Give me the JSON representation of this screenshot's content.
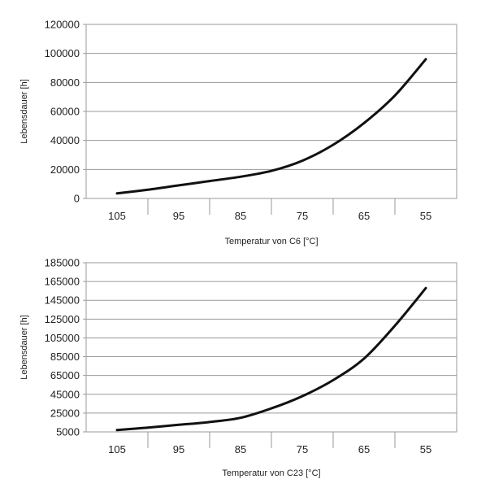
{
  "chart_data": [
    {
      "type": "line",
      "title": "",
      "xlabel": "Temperatur von C6 [°C]",
      "ylabel": "Lebensdauer [h]",
      "x_categories": [
        "105",
        "95",
        "85",
        "75",
        "65",
        "55"
      ],
      "y_ticks": [
        "0",
        "20000",
        "40000",
        "60000",
        "80000",
        "100000",
        "120000"
      ],
      "ylim": [
        0,
        120000
      ],
      "grid": true,
      "series": [
        {
          "x": [
            105,
            100,
            95,
            90,
            85,
            80,
            75,
            70,
            65,
            60,
            55
          ],
          "y": [
            3500,
            6000,
            9000,
            12000,
            15000,
            19000,
            26000,
            37000,
            52000,
            71000,
            96000
          ]
        }
      ],
      "line_color": "#111111"
    },
    {
      "type": "line",
      "title": "",
      "xlabel": "Temperatur von C23 [°C]",
      "ylabel": "Lebensdauer [h]",
      "x_categories": [
        "105",
        "95",
        "85",
        "75",
        "65",
        "55"
      ],
      "y_ticks": [
        "5000",
        "25000",
        "45000",
        "65000",
        "85000",
        "105000",
        "125000",
        "145000",
        "165000",
        "185000"
      ],
      "ylim": [
        5000,
        185000
      ],
      "grid": true,
      "series": [
        {
          "x": [
            105,
            100,
            95,
            90,
            85,
            80,
            75,
            70,
            65,
            60,
            55
          ],
          "y": [
            7000,
            9500,
            12500,
            15500,
            20000,
            30000,
            43000,
            60000,
            83000,
            118000,
            158000
          ]
        }
      ],
      "line_color": "#111111"
    }
  ]
}
